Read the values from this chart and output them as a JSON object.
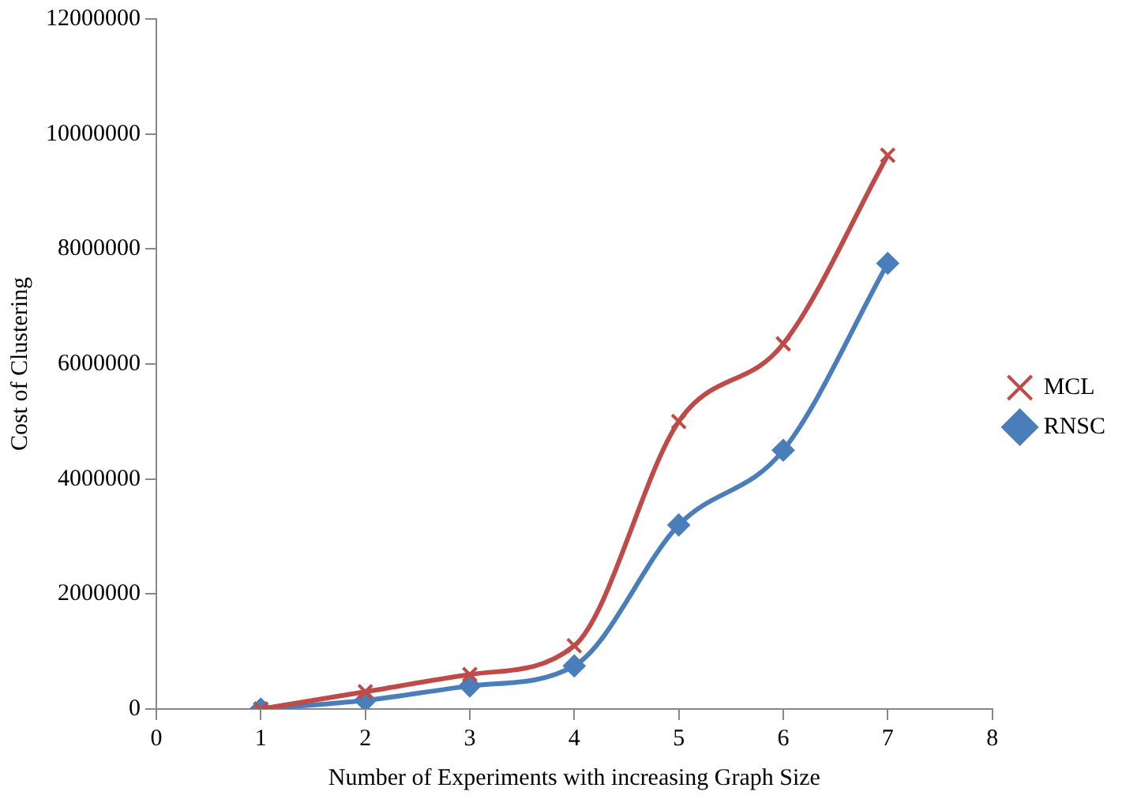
{
  "chart_data": {
    "type": "line",
    "xlabel": "Number of Experiments with increasing Graph Size",
    "ylabel": "Cost of Clustering",
    "x": [
      1,
      2,
      3,
      4,
      5,
      6,
      7
    ],
    "series": [
      {
        "name": "RNSC",
        "color": "#4a7ebb",
        "marker": "diamond",
        "values": [
          0,
          150000,
          400000,
          750000,
          3200000,
          4500000,
          7750000
        ]
      },
      {
        "name": "MCL",
        "color": "#be4b48",
        "marker": "cross",
        "values": [
          0,
          300000,
          600000,
          1100000,
          5000000,
          6350000,
          9630000
        ]
      }
    ],
    "xlim": [
      0,
      8
    ],
    "xticks": [
      0,
      1,
      2,
      3,
      4,
      5,
      6,
      7,
      8
    ],
    "ylim": [
      0,
      12000000
    ],
    "yticks": [
      0,
      2000000,
      4000000,
      6000000,
      8000000,
      10000000,
      12000000
    ],
    "grid": false,
    "legend": "right"
  }
}
